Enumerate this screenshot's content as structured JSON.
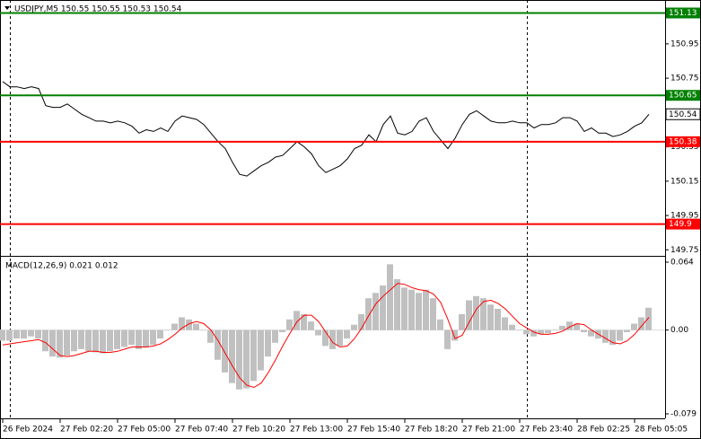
{
  "chart_data": [
    {
      "type": "line",
      "title": "USDJPY,M5  150.55 150.55 150.53 150.54",
      "categories": [
        "26 Feb 2024",
        null,
        null,
        null,
        null,
        null,
        null,
        null,
        "27 Feb 02:20",
        null,
        null,
        null,
        null,
        null,
        null,
        null,
        "27 Feb 05:00",
        null,
        null,
        null,
        null,
        null,
        null,
        null,
        "27 Feb 07:40",
        null,
        null,
        null,
        null,
        null,
        null,
        null,
        "27 Feb 10:20",
        null,
        null,
        null,
        null,
        null,
        null,
        null,
        "27 Feb 13:00",
        null,
        null,
        null,
        null,
        null,
        null,
        null,
        "27 Feb 15:40",
        null,
        null,
        null,
        null,
        null,
        null,
        null,
        "27 Feb 18:20",
        null,
        null,
        null,
        null,
        null,
        null,
        null,
        "27 Feb 21:00",
        null,
        null,
        null,
        null,
        null,
        null,
        null,
        "27 Feb 23:40",
        null,
        null,
        null,
        null,
        null,
        null,
        null,
        "28 Feb 02:25",
        null,
        null,
        null,
        null,
        null,
        null,
        null,
        "28 Feb 05:05",
        null,
        null
      ],
      "values": [
        150.73,
        150.7,
        150.7,
        150.69,
        150.7,
        150.69,
        150.59,
        150.58,
        150.58,
        150.6,
        150.57,
        150.54,
        150.52,
        150.5,
        150.5,
        150.49,
        150.5,
        150.49,
        150.47,
        150.43,
        150.45,
        150.44,
        150.46,
        150.44,
        150.5,
        150.53,
        150.52,
        150.51,
        150.48,
        150.43,
        150.38,
        150.34,
        150.26,
        150.19,
        150.18,
        150.21,
        150.24,
        150.26,
        150.29,
        150.3,
        150.34,
        150.38,
        150.35,
        150.31,
        150.24,
        150.2,
        150.22,
        150.24,
        150.28,
        150.34,
        150.36,
        150.42,
        150.38,
        150.48,
        150.53,
        150.43,
        150.42,
        150.44,
        150.5,
        150.52,
        150.44,
        150.39,
        150.34,
        150.4,
        150.48,
        150.54,
        150.56,
        150.53,
        150.5,
        150.49,
        150.49,
        150.5,
        150.49,
        150.49,
        150.46,
        150.48,
        150.48,
        150.49,
        150.52,
        150.52,
        150.5,
        150.44,
        150.46,
        150.43,
        150.43,
        150.41,
        150.42,
        150.44,
        150.47,
        150.49,
        150.54
      ],
      "color": "#000000",
      "ylim": [
        149.72,
        151.19
      ],
      "yticks": [
        150.95,
        150.75,
        150.35,
        150.15,
        149.95,
        149.75
      ],
      "levels": [
        {
          "value": 151.13,
          "color": "#008000"
        },
        {
          "value": 150.65,
          "color": "#008000"
        },
        {
          "value": 150.38,
          "color": "#ff0000"
        },
        {
          "value": 149.9,
          "color": "#ff0000"
        }
      ]
    },
    {
      "type": "bar",
      "title": "MACD(12,26,9) 0.021 0.012",
      "ylim": [
        -0.079,
        0.064
      ],
      "yticks": [
        0.064,
        {
          "value": 0,
          "label": "0.00"
        },
        -0.079
      ],
      "series": [
        {
          "color": "#c0c0c0",
          "style": "bar",
          "values": [
            -0.01,
            -0.01,
            -0.008,
            -0.008,
            -0.006,
            -0.008,
            -0.02,
            -0.025,
            -0.026,
            -0.024,
            -0.02,
            -0.018,
            -0.02,
            -0.021,
            -0.022,
            -0.02,
            -0.018,
            -0.016,
            -0.014,
            -0.018,
            -0.016,
            -0.014,
            -0.008,
            0.0,
            0.006,
            0.012,
            0.01,
            0.006,
            0.0,
            -0.012,
            -0.028,
            -0.04,
            -0.05,
            -0.056,
            -0.055,
            -0.048,
            -0.038,
            -0.025,
            -0.012,
            -0.002,
            0.01,
            0.018,
            0.015,
            0.008,
            -0.005,
            -0.015,
            -0.018,
            -0.015,
            -0.008,
            0.005,
            0.015,
            0.03,
            0.035,
            0.042,
            0.062,
            0.048,
            0.04,
            0.038,
            0.035,
            0.038,
            0.03,
            0.01,
            -0.018,
            -0.01,
            0.015,
            0.028,
            0.032,
            0.03,
            0.024,
            0.02,
            0.012,
            0.005,
            0.0,
            -0.004,
            -0.006,
            -0.004,
            -0.003,
            0.0,
            0.004,
            0.008,
            0.006,
            -0.002,
            -0.006,
            -0.008,
            -0.012,
            -0.014,
            -0.01,
            -0.002,
            0.006,
            0.012,
            0.021
          ]
        },
        {
          "color": "#ff0000",
          "style": "line",
          "values": [
            -0.014,
            -0.013,
            -0.012,
            -0.011,
            -0.01,
            -0.009,
            -0.012,
            -0.018,
            -0.024,
            -0.025,
            -0.024,
            -0.022,
            -0.02,
            -0.02,
            -0.021,
            -0.021,
            -0.02,
            -0.018,
            -0.016,
            -0.016,
            -0.016,
            -0.015,
            -0.013,
            -0.009,
            -0.004,
            0.002,
            0.006,
            0.008,
            0.006,
            0.0,
            -0.01,
            -0.022,
            -0.034,
            -0.045,
            -0.052,
            -0.054,
            -0.05,
            -0.04,
            -0.028,
            -0.015,
            -0.003,
            0.008,
            0.014,
            0.014,
            0.008,
            -0.002,
            -0.012,
            -0.016,
            -0.015,
            -0.008,
            0.002,
            0.014,
            0.025,
            0.032,
            0.038,
            0.044,
            0.043,
            0.04,
            0.038,
            0.037,
            0.034,
            0.026,
            0.01,
            -0.008,
            -0.005,
            0.008,
            0.02,
            0.027,
            0.028,
            0.025,
            0.02,
            0.013,
            0.006,
            0.002,
            -0.002,
            -0.004,
            -0.004,
            -0.003,
            -0.001,
            0.003,
            0.006,
            0.005,
            0.0,
            -0.004,
            -0.008,
            -0.012,
            -0.013,
            -0.01,
            -0.004,
            0.004,
            0.012
          ]
        }
      ]
    }
  ]
}
